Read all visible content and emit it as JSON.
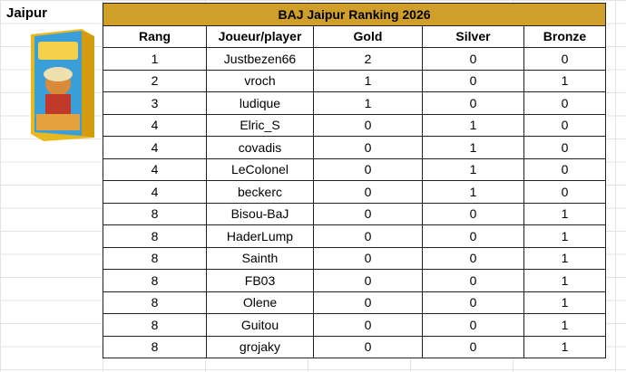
{
  "sheet_label": "Jaipur",
  "table": {
    "title": "BAJ Jaipur Ranking 2026",
    "header": [
      "Rang",
      "Joueur/player",
      "Gold",
      "Silver",
      "Bronze"
    ],
    "rows": [
      [
        1,
        "Justbezen66",
        2,
        0,
        0
      ],
      [
        2,
        "vroch",
        1,
        0,
        1
      ],
      [
        3,
        "ludique",
        1,
        0,
        0
      ],
      [
        4,
        "Elric_S",
        0,
        1,
        0
      ],
      [
        4,
        "covadis",
        0,
        1,
        0
      ],
      [
        4,
        "LeColonel",
        0,
        1,
        0
      ],
      [
        4,
        "beckerc",
        0,
        1,
        0
      ],
      [
        8,
        "Bisou-BaJ",
        0,
        0,
        1
      ],
      [
        8,
        "HaderLump",
        0,
        0,
        1
      ],
      [
        8,
        "Sainth",
        0,
        0,
        1
      ],
      [
        8,
        "FB03",
        0,
        0,
        1
      ],
      [
        8,
        "Olene",
        0,
        0,
        1
      ],
      [
        8,
        "Guitou",
        0,
        0,
        1
      ],
      [
        8,
        "grojaky",
        0,
        0,
        1
      ]
    ]
  }
}
